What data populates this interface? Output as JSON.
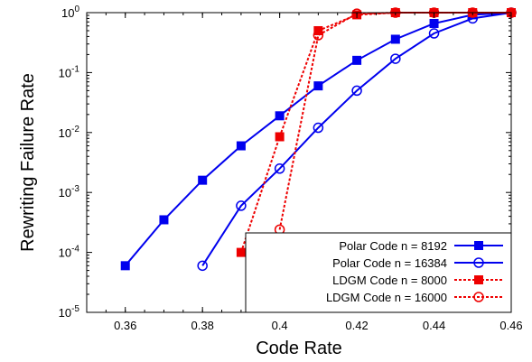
{
  "chart_data": {
    "type": "line",
    "xlabel": "Code Rate",
    "ylabel": "Rewriting Failure Rate",
    "xlim": [
      0.35,
      0.46
    ],
    "ylim": [
      1e-05,
      1
    ],
    "y_scale": "log",
    "grid": false,
    "legend_position": "bottom-right",
    "x_ticks": [
      "0.36",
      "0.38",
      "0.4",
      "0.42",
      "0.44",
      "0.46"
    ],
    "x_tick_values": [
      0.36,
      0.38,
      0.4,
      0.42,
      0.44,
      0.46
    ],
    "y_ticks": [
      {
        "value": 1e-05,
        "base": "10",
        "exp": "-5"
      },
      {
        "value": 0.0001,
        "base": "10",
        "exp": "-4"
      },
      {
        "value": 0.001,
        "base": "10",
        "exp": "-3"
      },
      {
        "value": 0.01,
        "base": "10",
        "exp": "-2"
      },
      {
        "value": 0.1,
        "base": "10",
        "exp": "-1"
      },
      {
        "value": 1,
        "base": "10",
        "exp": "0"
      }
    ],
    "series": [
      {
        "name": "Polar Code n = 8192",
        "color": "#0000ee",
        "dash": "solid",
        "marker": "filled-square",
        "x": [
          0.36,
          0.37,
          0.38,
          0.39,
          0.4,
          0.41,
          0.42,
          0.43,
          0.44,
          0.45,
          0.46
        ],
        "y": [
          6e-05,
          0.00035,
          0.0016,
          0.006,
          0.019,
          0.06,
          0.16,
          0.36,
          0.66,
          0.92,
          1.0
        ]
      },
      {
        "name": "Polar Code n = 16384",
        "color": "#0000ee",
        "dash": "solid",
        "marker": "open-circle",
        "x": [
          0.38,
          0.39,
          0.4,
          0.41,
          0.42,
          0.43,
          0.44,
          0.45,
          0.46
        ],
        "y": [
          6e-05,
          0.0006,
          0.0025,
          0.012,
          0.05,
          0.17,
          0.45,
          0.8,
          1.0
        ]
      },
      {
        "name": "LDGM Code n = 8000",
        "color": "#ee0000",
        "dash": "dotted",
        "marker": "filled-square",
        "x": [
          0.39,
          0.4,
          0.41,
          0.42,
          0.43,
          0.44,
          0.45,
          0.46
        ],
        "y": [
          0.0001,
          0.0085,
          0.5,
          0.92,
          1.0,
          1.0,
          1.0,
          1.0
        ]
      },
      {
        "name": "LDGM Code n = 16000",
        "color": "#ee0000",
        "dash": "dotted",
        "marker": "open-circle",
        "x": [
          0.4,
          0.41,
          0.42,
          0.43,
          0.44,
          0.45,
          0.46
        ],
        "y": [
          0.00024,
          0.42,
          0.96,
          1.0,
          1.0,
          1.0,
          1.0
        ]
      }
    ]
  }
}
